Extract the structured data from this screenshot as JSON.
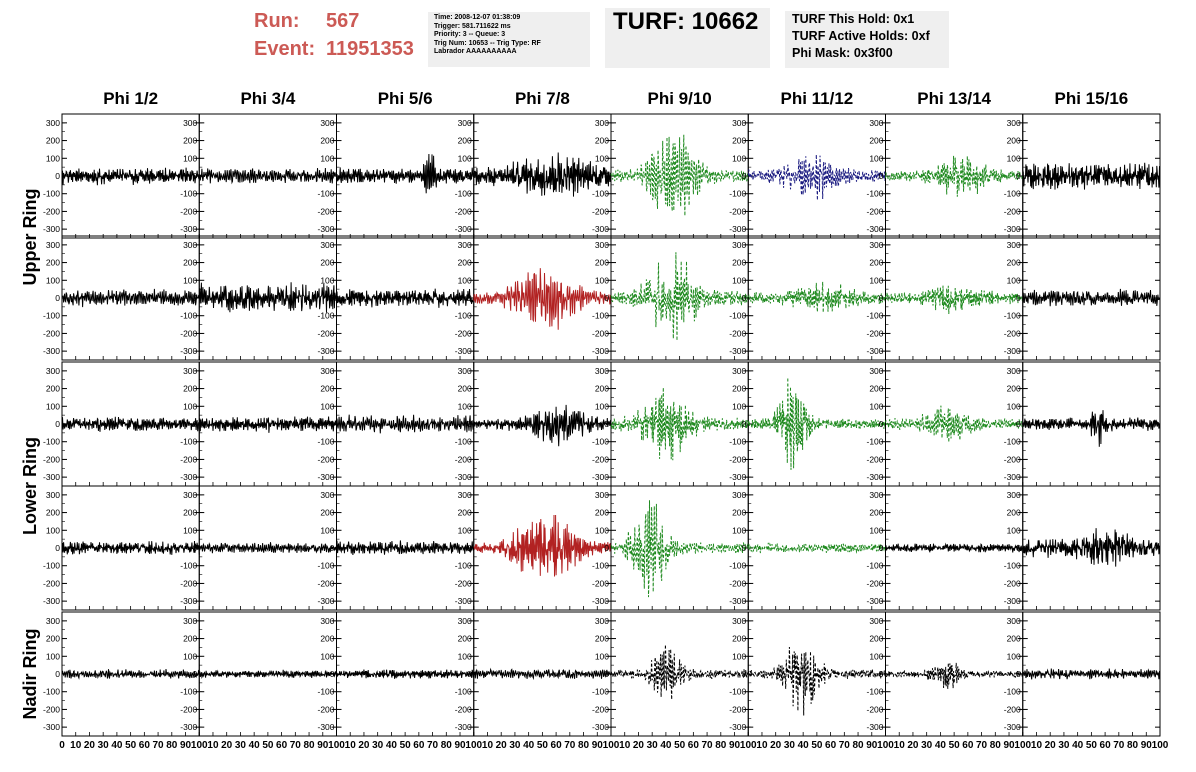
{
  "header": {
    "run_label": "Run:",
    "run_value": "567",
    "event_label": "Event:",
    "event_value": "11951353",
    "info_lines": [
      "Time: 2008-12-07 01:38:09",
      "Trigger: 581.711622 ms",
      "Priority: 3 -- Queue: 3",
      "Trig Num: 10653 -- Trig Type: RF",
      "Labrador AAAAAAAAAA"
    ],
    "turf_text": "TURF: 10662",
    "turf_lines": [
      "TURF This Hold: 0x1",
      "TURF Active Holds: 0xf",
      "Phi Mask: 0x3f00"
    ]
  },
  "colors": {
    "header_red": "#cc5a55",
    "black": "#000000",
    "red": "#b22222",
    "green": "#1f8a1f",
    "blue": "#1a1a80",
    "panel_box": "#efefef"
  },
  "chart_data": {
    "type": "line",
    "columns": [
      "Phi 1/2",
      "Phi 3/4",
      "Phi 5/6",
      "Phi 7/8",
      "Phi 9/10",
      "Phi 11/12",
      "Phi 13/14",
      "Phi 15/16"
    ],
    "rows": [
      "Upper Ring",
      "Lower Ring",
      "Nadir Ring"
    ],
    "xlim": [
      0,
      100
    ],
    "ylim": [
      -350,
      350
    ],
    "y_ticks": [
      -300,
      -200,
      -100,
      0,
      100,
      200,
      300
    ],
    "x_ticks": [
      0,
      10,
      20,
      30,
      40,
      50,
      60,
      70,
      80,
      90,
      100
    ],
    "x_tick_labels_bottom": "0 10 20 30 40 50 60 70 80 90 100",
    "panels": [
      {
        "row": 0,
        "col": 0,
        "color": "black",
        "style": "solid",
        "amp": 55,
        "burst": null
      },
      {
        "row": 0,
        "col": 1,
        "color": "black",
        "style": "solid",
        "amp": 50,
        "burst": null
      },
      {
        "row": 0,
        "col": 2,
        "color": "black",
        "style": "solid",
        "amp": 50,
        "burst": {
          "center": 68,
          "width": 4,
          "amp": 150
        }
      },
      {
        "row": 0,
        "col": 3,
        "color": "black",
        "style": "solid",
        "amp": 65,
        "burst": {
          "center": 60,
          "width": 25,
          "amp": 100
        }
      },
      {
        "row": 0,
        "col": 4,
        "color": "green",
        "style": "dashed",
        "amp": 40,
        "burst": {
          "center": 45,
          "width": 18,
          "amp": 280
        }
      },
      {
        "row": 0,
        "col": 5,
        "color": "blue",
        "style": "dashed",
        "amp": 40,
        "burst": {
          "center": 45,
          "width": 18,
          "amp": 130
        }
      },
      {
        "row": 0,
        "col": 6,
        "color": "green",
        "style": "dashed",
        "amp": 35,
        "burst": {
          "center": 55,
          "width": 18,
          "amp": 110
        }
      },
      {
        "row": 0,
        "col": 7,
        "color": "black",
        "style": "solid",
        "amp": 90,
        "burst": null
      },
      {
        "row": 1,
        "col": 0,
        "color": "black",
        "style": "solid",
        "amp": 55,
        "burst": null
      },
      {
        "row": 1,
        "col": 1,
        "color": "black",
        "style": "solid",
        "amp": 95,
        "burst": null
      },
      {
        "row": 1,
        "col": 2,
        "color": "black",
        "style": "solid",
        "amp": 60,
        "burst": null
      },
      {
        "row": 1,
        "col": 3,
        "color": "red",
        "style": "solid",
        "amp": 40,
        "burst": {
          "center": 52,
          "width": 22,
          "amp": 190
        }
      },
      {
        "row": 1,
        "col": 4,
        "color": "green",
        "style": "dashed",
        "amp": 45,
        "burst": {
          "center": 45,
          "width": 18,
          "amp": 240
        }
      },
      {
        "row": 1,
        "col": 5,
        "color": "green",
        "style": "dashed",
        "amp": 40,
        "burst": {
          "center": 55,
          "width": 20,
          "amp": 70
        }
      },
      {
        "row": 1,
        "col": 6,
        "color": "green",
        "style": "dashed",
        "amp": 35,
        "burst": {
          "center": 50,
          "width": 20,
          "amp": 70
        }
      },
      {
        "row": 1,
        "col": 7,
        "color": "black",
        "style": "solid",
        "amp": 55,
        "burst": null
      },
      {
        "row": 2,
        "col": 0,
        "color": "black",
        "style": "solid",
        "amp": 45,
        "burst": null
      },
      {
        "row": 2,
        "col": 1,
        "color": "black",
        "style": "solid",
        "amp": 50,
        "burst": null
      },
      {
        "row": 2,
        "col": 2,
        "color": "black",
        "style": "solid",
        "amp": 55,
        "burst": null
      },
      {
        "row": 2,
        "col": 3,
        "color": "black",
        "style": "solid",
        "amp": 35,
        "burst": {
          "center": 62,
          "width": 20,
          "amp": 120
        }
      },
      {
        "row": 2,
        "col": 4,
        "color": "green",
        "style": "dashed",
        "amp": 40,
        "burst": {
          "center": 40,
          "width": 18,
          "amp": 210
        }
      },
      {
        "row": 2,
        "col": 5,
        "color": "green",
        "style": "dashed",
        "amp": 35,
        "burst": {
          "center": 32,
          "width": 10,
          "amp": 330
        }
      },
      {
        "row": 2,
        "col": 6,
        "color": "green",
        "style": "dashed",
        "amp": 35,
        "burst": {
          "center": 45,
          "width": 16,
          "amp": 100
        }
      },
      {
        "row": 2,
        "col": 7,
        "color": "black",
        "style": "solid",
        "amp": 40,
        "burst": {
          "center": 55,
          "width": 6,
          "amp": 110
        }
      },
      {
        "row": 3,
        "col": 0,
        "color": "black",
        "style": "solid",
        "amp": 45,
        "burst": null
      },
      {
        "row": 3,
        "col": 1,
        "color": "black",
        "style": "solid",
        "amp": 35,
        "burst": null
      },
      {
        "row": 3,
        "col": 2,
        "color": "black",
        "style": "solid",
        "amp": 45,
        "burst": null
      },
      {
        "row": 3,
        "col": 3,
        "color": "red",
        "style": "solid",
        "amp": 40,
        "burst": {
          "center": 52,
          "width": 22,
          "amp": 200
        }
      },
      {
        "row": 3,
        "col": 4,
        "color": "green",
        "style": "dashed",
        "amp": 35,
        "burst": {
          "center": 28,
          "width": 12,
          "amp": 340
        }
      },
      {
        "row": 3,
        "col": 5,
        "color": "green",
        "style": "dashed",
        "amp": 30,
        "burst": null
      },
      {
        "row": 3,
        "col": 6,
        "color": "black",
        "style": "solid",
        "amp": 30,
        "burst": null
      },
      {
        "row": 3,
        "col": 7,
        "color": "black",
        "style": "solid",
        "amp": 60,
        "burst": {
          "center": 60,
          "width": 15,
          "amp": 90
        }
      },
      {
        "row": 4,
        "col": 0,
        "color": "black",
        "style": "solid",
        "amp": 30,
        "burst": null
      },
      {
        "row": 4,
        "col": 1,
        "color": "black",
        "style": "solid",
        "amp": 25,
        "burst": null
      },
      {
        "row": 4,
        "col": 2,
        "color": "black",
        "style": "solid",
        "amp": 30,
        "burst": null
      },
      {
        "row": 4,
        "col": 3,
        "color": "black",
        "style": "solid",
        "amp": 30,
        "burst": null
      },
      {
        "row": 4,
        "col": 4,
        "color": "black",
        "style": "dashed",
        "amp": 30,
        "burst": {
          "center": 40,
          "width": 10,
          "amp": 220
        }
      },
      {
        "row": 4,
        "col": 5,
        "color": "black",
        "style": "dashed",
        "amp": 30,
        "burst": {
          "center": 40,
          "width": 12,
          "amp": 280
        }
      },
      {
        "row": 4,
        "col": 6,
        "color": "black",
        "style": "dashed",
        "amp": 25,
        "burst": {
          "center": 45,
          "width": 10,
          "amp": 80
        }
      },
      {
        "row": 4,
        "col": 7,
        "color": "black",
        "style": "solid",
        "amp": 35,
        "burst": null
      }
    ]
  }
}
